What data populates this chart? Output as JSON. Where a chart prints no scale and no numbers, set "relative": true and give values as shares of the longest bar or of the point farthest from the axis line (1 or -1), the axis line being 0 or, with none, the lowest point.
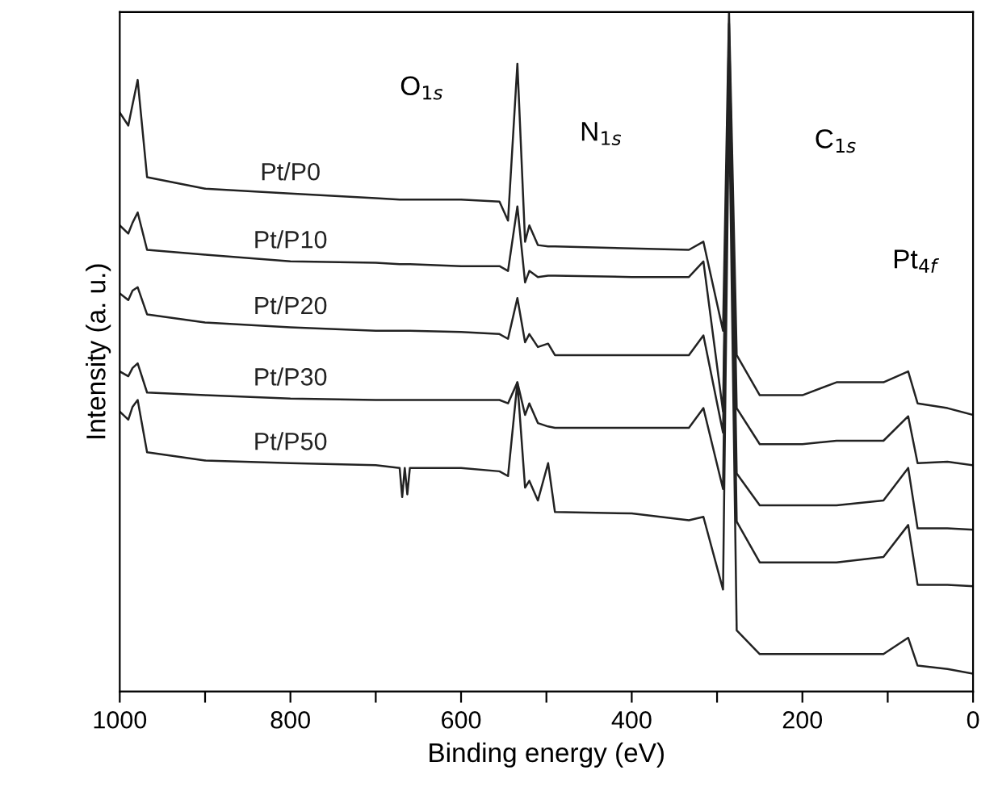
{
  "chart_data": {
    "type": "line",
    "xlabel": "Binding energy (eV)",
    "ylabel": "Intensity (a. u.)",
    "relative": true,
    "x": [
      1000,
      990,
      985,
      979,
      968,
      900,
      800,
      700,
      672,
      669,
      666,
      663,
      660,
      600,
      555,
      545,
      534,
      525,
      520,
      510,
      498,
      490,
      400,
      333,
      316,
      293,
      286,
      277,
      250,
      200,
      160,
      105,
      76,
      65,
      30,
      0
    ],
    "xlim": [
      1000,
      0
    ],
    "xticks": [
      1000,
      {
        "value": 900,
        "label": null
      },
      800,
      {
        "value": 700,
        "label": null
      },
      600,
      {
        "value": 500,
        "label": null
      },
      400,
      {
        "value": 300,
        "label": null
      },
      200,
      {
        "value": 100,
        "label": null
      },
      0
    ],
    "tick_labels": "x",
    "grid": false,
    "legend": false,
    "marker": "none",
    "line_style": "solid",
    "series": [
      {
        "name": "Pt/P0",
        "color": "#222222",
        "values": [
          0.852,
          0.833,
          0.864,
          0.9,
          0.757,
          0.74,
          0.733,
          0.726,
          0.724,
          0.724,
          0.724,
          0.724,
          0.724,
          0.724,
          0.721,
          0.693,
          0.924,
          0.662,
          0.686,
          0.657,
          0.655,
          0.655,
          0.652,
          0.65,
          0.662,
          0.531,
          1.0,
          0.495,
          0.436,
          0.436,
          0.455,
          0.455,
          0.471,
          0.424,
          0.417,
          0.407
        ]
      },
      {
        "name": "Pt/P10",
        "color": "#222222",
        "values": [
          0.686,
          0.674,
          0.69,
          0.705,
          0.65,
          0.643,
          0.633,
          0.631,
          0.629,
          0.629,
          0.629,
          0.629,
          0.629,
          0.626,
          0.626,
          0.619,
          0.714,
          0.602,
          0.619,
          0.61,
          0.612,
          0.612,
          0.61,
          0.61,
          0.633,
          0.412,
          0.983,
          0.417,
          0.364,
          0.364,
          0.369,
          0.369,
          0.405,
          0.336,
          0.338,
          0.333
        ]
      },
      {
        "name": "Pt/P20",
        "color": "#222222",
        "values": [
          0.586,
          0.576,
          0.59,
          0.595,
          0.555,
          0.543,
          0.536,
          0.531,
          0.531,
          0.531,
          0.531,
          0.531,
          0.531,
          0.529,
          0.526,
          0.519,
          0.579,
          0.514,
          0.526,
          0.507,
          0.512,
          0.495,
          0.495,
          0.495,
          0.524,
          0.381,
          0.948,
          0.321,
          0.274,
          0.274,
          0.274,
          0.281,
          0.329,
          0.24,
          0.24,
          0.238
        ]
      },
      {
        "name": "Pt/P30",
        "color": "#222222",
        "values": [
          0.471,
          0.464,
          0.476,
          0.483,
          0.44,
          0.436,
          0.431,
          0.429,
          0.429,
          0.429,
          0.429,
          0.429,
          0.429,
          0.429,
          0.429,
          0.424,
          0.455,
          0.407,
          0.424,
          0.395,
          0.39,
          0.388,
          0.388,
          0.388,
          0.417,
          0.298,
          0.912,
          0.25,
          0.19,
          0.19,
          0.19,
          0.198,
          0.245,
          0.157,
          0.157,
          0.155
        ]
      },
      {
        "name": "Pt/P50",
        "color": "#222222",
        "values": [
          0.412,
          0.4,
          0.419,
          0.429,
          0.352,
          0.34,
          0.336,
          0.333,
          0.329,
          0.286,
          0.329,
          0.29,
          0.329,
          0.329,
          0.324,
          0.317,
          0.455,
          0.3,
          0.31,
          0.281,
          0.336,
          0.264,
          0.262,
          0.252,
          0.257,
          0.15,
          0.876,
          0.09,
          0.055,
          0.055,
          0.055,
          0.055,
          0.079,
          0.038,
          0.033,
          0.026
        ]
      }
    ],
    "annotations": [
      "O$_{1s}$",
      "N$_{1s}$",
      "C$_{1s}$",
      "Pt$_{4f}$"
    ]
  }
}
